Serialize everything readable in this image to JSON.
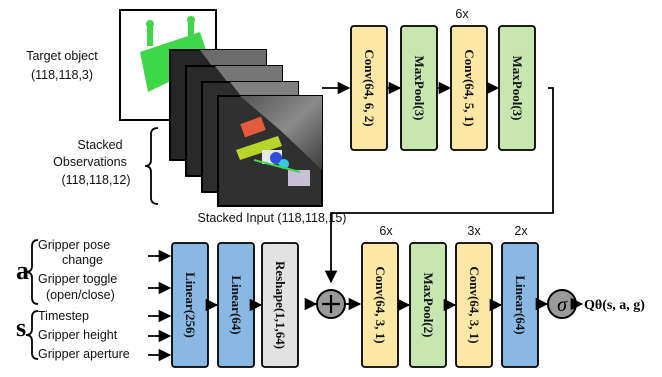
{
  "inputs": {
    "target_object": {
      "title": "Target object",
      "shape": "(118,118,3)"
    },
    "stacked_observations": {
      "line1": "Stacked",
      "line2": "Observations",
      "shape": "(118,118,12)"
    },
    "stacked_input": "Stacked Input (118,118,15)"
  },
  "image_branch": {
    "repeat_label": "6x",
    "blocks": [
      {
        "label": "Conv(64, 6, 2)",
        "color": "#fbe7a6"
      },
      {
        "label": "MaxPool(3)",
        "color": "#c8e6b0"
      },
      {
        "label": "Conv(64, 5, 1)",
        "color": "#fbe7a6"
      },
      {
        "label": "MaxPool(3)",
        "color": "#c8e6b0"
      }
    ]
  },
  "vector_inputs": {
    "a_symbol": "a",
    "s_symbol": "s",
    "items": [
      "Gripper pose",
      "change",
      "Gripper toggle",
      "(open/close)",
      "Timestep",
      "Gripper height",
      "Gripper aperture"
    ]
  },
  "vector_branch": {
    "blocks": [
      {
        "label": "Linear(256)",
        "color": "#8ab8e4"
      },
      {
        "label": "Linear(64)",
        "color": "#8ab8e4"
      },
      {
        "label": "Reshape(1,1,64)",
        "color": "#e2e2e2"
      }
    ]
  },
  "merge_symbol": "+",
  "head": {
    "repeat_labels": [
      "6x",
      "3x",
      "2x"
    ],
    "blocks": [
      {
        "label": "Conv(64, 3, 1)",
        "color": "#fbe7a6"
      },
      {
        "label": "MaxPool(2)",
        "color": "#c8e6b0"
      },
      {
        "label": "Conv(64, 3, 1)",
        "color": "#fbe7a6"
      },
      {
        "label": "Linear(64)",
        "color": "#8ab8e4"
      }
    ],
    "activation_symbol": "σ",
    "output_label": "Qθ(s, a, g)"
  },
  "colors": {
    "arrow": "#000000",
    "node_fill": "#9a9a9a"
  }
}
